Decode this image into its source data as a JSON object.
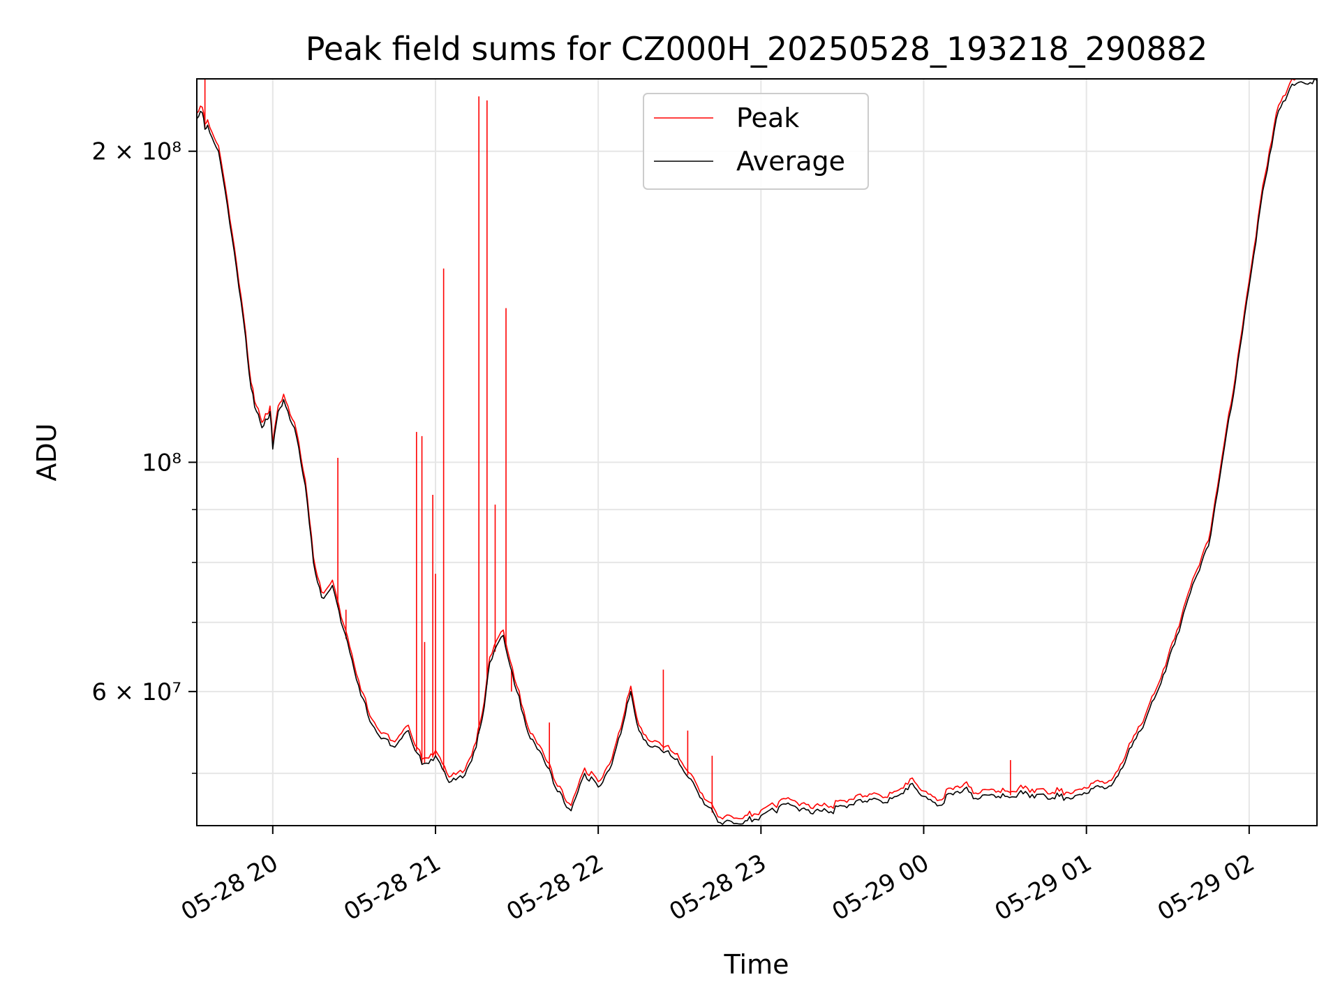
{
  "chart_data": {
    "type": "line",
    "title": "Peak field sums for CZ000H_20250528_193218_290882",
    "xlabel": "Time",
    "ylabel": "ADU",
    "yscale": "log",
    "xlim": [
      "2025-05-28 19:32",
      "2025-05-29 02:25"
    ],
    "ylim": [
      44500000,
      235000000
    ],
    "grid": true,
    "legend_position": "top-center",
    "x_ticks": [
      {
        "value": "2025-05-28 20:00",
        "label": "05-28 20"
      },
      {
        "value": "2025-05-28 21:00",
        "label": "05-28 21"
      },
      {
        "value": "2025-05-28 22:00",
        "label": "05-28 22"
      },
      {
        "value": "2025-05-28 23:00",
        "label": "05-28 23"
      },
      {
        "value": "2025-05-29 00:00",
        "label": "05-29 00"
      },
      {
        "value": "2025-05-29 01:00",
        "label": "05-29 01"
      },
      {
        "value": "2025-05-29 02:00",
        "label": "05-29 02"
      }
    ],
    "y_major_ticks": [
      {
        "value": 200000000,
        "label": "2 × 10⁸"
      },
      {
        "value": 100000000,
        "label": "10⁸"
      },
      {
        "value": 60000000,
        "label": "6 × 10⁷"
      }
    ],
    "y_minor_ticks": [
      50000000,
      70000000,
      80000000,
      90000000
    ],
    "series": [
      {
        "name": "Average",
        "color": "#000000",
        "x": [
          "2025-05-28 19:32",
          "2025-05-28 19:34",
          "2025-05-28 19:35",
          "2025-05-28 19:36",
          "2025-05-28 19:40",
          "2025-05-28 19:45",
          "2025-05-28 19:50",
          "2025-05-28 19:52",
          "2025-05-28 19:54",
          "2025-05-28 19:56",
          "2025-05-28 19:58",
          "2025-05-28 19:59",
          "2025-05-28 20:00",
          "2025-05-28 20:02",
          "2025-05-28 20:04",
          "2025-05-28 20:08",
          "2025-05-28 20:12",
          "2025-05-28 20:15",
          "2025-05-28 20:18",
          "2025-05-28 20:22",
          "2025-05-28 20:26",
          "2025-05-28 20:30",
          "2025-05-28 20:35",
          "2025-05-28 20:40",
          "2025-05-28 20:45",
          "2025-05-28 20:50",
          "2025-05-28 20:55",
          "2025-05-28 21:00",
          "2025-05-28 21:05",
          "2025-05-28 21:10",
          "2025-05-28 21:15",
          "2025-05-28 21:18",
          "2025-05-28 21:20",
          "2025-05-28 21:25",
          "2025-05-28 21:30",
          "2025-05-28 21:35",
          "2025-05-28 21:40",
          "2025-05-28 21:42",
          "2025-05-28 21:45",
          "2025-05-28 21:50",
          "2025-05-28 21:55",
          "2025-05-28 22:00",
          "2025-05-28 22:05",
          "2025-05-28 22:10",
          "2025-05-28 22:12",
          "2025-05-28 22:15",
          "2025-05-28 22:20",
          "2025-05-28 22:25",
          "2025-05-28 22:30",
          "2025-05-28 22:35",
          "2025-05-28 22:40",
          "2025-05-28 22:45",
          "2025-05-28 22:50",
          "2025-05-28 22:55",
          "2025-05-28 23:00",
          "2025-05-28 23:05",
          "2025-05-28 23:10",
          "2025-05-28 23:15",
          "2025-05-28 23:20",
          "2025-05-28 23:25",
          "2025-05-28 23:30",
          "2025-05-28 23:35",
          "2025-05-28 23:40",
          "2025-05-28 23:45",
          "2025-05-28 23:50",
          "2025-05-28 23:55",
          "2025-05-29 00:00",
          "2025-05-29 00:05",
          "2025-05-29 00:10",
          "2025-05-29 00:15",
          "2025-05-29 00:20",
          "2025-05-29 00:25",
          "2025-05-29 00:30",
          "2025-05-29 00:35",
          "2025-05-29 00:40",
          "2025-05-29 00:45",
          "2025-05-29 00:50",
          "2025-05-29 00:55",
          "2025-05-29 01:00",
          "2025-05-29 01:05",
          "2025-05-29 01:10",
          "2025-05-29 01:15",
          "2025-05-29 01:20",
          "2025-05-29 01:25",
          "2025-05-29 01:30",
          "2025-05-29 01:35",
          "2025-05-29 01:40",
          "2025-05-29 01:45",
          "2025-05-29 01:50",
          "2025-05-29 01:55",
          "2025-05-29 02:00",
          "2025-05-29 02:05",
          "2025-05-29 02:10",
          "2025-05-29 02:15",
          "2025-05-29 02:20",
          "2025-05-29 02:25"
        ],
        "values": [
          215000000,
          218000000,
          210000000,
          212000000,
          200000000,
          165000000,
          132000000,
          118000000,
          112000000,
          108000000,
          110000000,
          112000000,
          103000000,
          112000000,
          115000000,
          108000000,
          95000000,
          80000000,
          74000000,
          76000000,
          69000000,
          63000000,
          57000000,
          54000000,
          53000000,
          55000000,
          51000000,
          52000000,
          49000000,
          49500000,
          53000000,
          58000000,
          64000000,
          68000000,
          60000000,
          54000000,
          51500000,
          50500000,
          48000000,
          46000000,
          50000000,
          48500000,
          51000000,
          57000000,
          60000000,
          55000000,
          53000000,
          52500000,
          51000000,
          49000000,
          46500000,
          44800000,
          44700000,
          45000000,
          45500000,
          46000000,
          46800000,
          46200000,
          46000000,
          45800000,
          46500000,
          47000000,
          47200000,
          46800000,
          47500000,
          48800000,
          47500000,
          46500000,
          47800000,
          48300000,
          47200000,
          47700000,
          47500000,
          47800000,
          47700000,
          47500000,
          47500000,
          47300000,
          47800000,
          48500000,
          49000000,
          52000000,
          55000000,
          59000000,
          64000000,
          70000000,
          77000000,
          83000000,
          100000000,
          120000000,
          148000000,
          183000000,
          215000000,
          230000000,
          233000000,
          234000000
        ]
      },
      {
        "name": "Peak",
        "color": "#ff0000",
        "spikes": [
          {
            "x": "2025-05-28 19:35",
            "y": 235000000
          },
          {
            "x": "2025-05-28 20:24",
            "y": 101000000
          },
          {
            "x": "2025-05-28 20:27",
            "y": 72000000
          },
          {
            "x": "2025-05-28 20:53",
            "y": 107000000
          },
          {
            "x": "2025-05-28 20:55",
            "y": 106000000
          },
          {
            "x": "2025-05-28 20:56",
            "y": 67000000
          },
          {
            "x": "2025-05-28 20:59",
            "y": 93000000
          },
          {
            "x": "2025-05-28 21:00",
            "y": 78000000
          },
          {
            "x": "2025-05-28 21:03",
            "y": 154000000
          },
          {
            "x": "2025-05-28 21:16",
            "y": 226000000
          },
          {
            "x": "2025-05-28 21:19",
            "y": 224000000
          },
          {
            "x": "2025-05-28 21:22",
            "y": 91000000
          },
          {
            "x": "2025-05-28 21:26",
            "y": 141000000
          },
          {
            "x": "2025-05-28 21:28",
            "y": 60000000
          },
          {
            "x": "2025-05-28 21:42",
            "y": 56000000
          },
          {
            "x": "2025-05-28 22:24",
            "y": 63000000
          },
          {
            "x": "2025-05-28 22:33",
            "y": 55000000
          },
          {
            "x": "2025-05-28 22:42",
            "y": 52000000
          },
          {
            "x": "2025-05-29 00:32",
            "y": 51500000
          }
        ]
      }
    ]
  }
}
